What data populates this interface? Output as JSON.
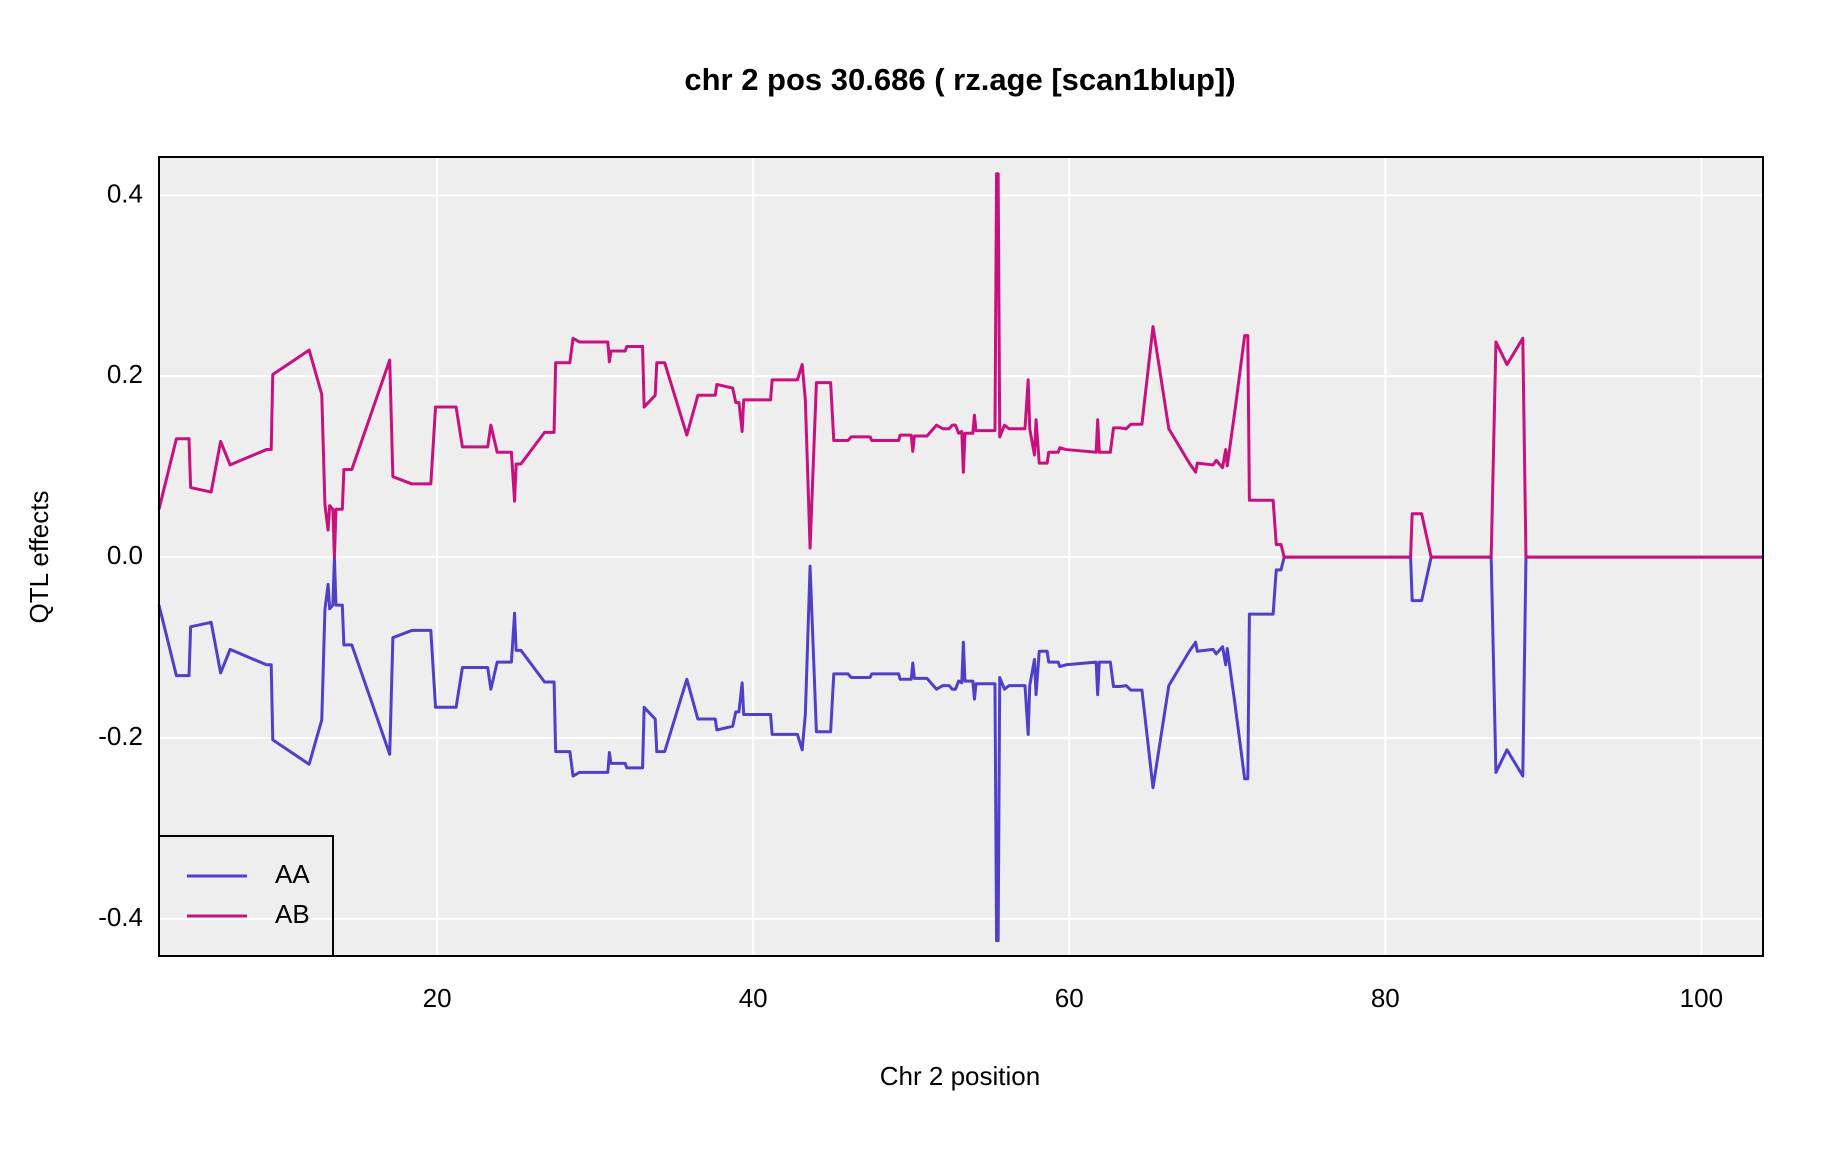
{
  "chart_data": {
    "type": "line",
    "title": "chr 2 pos 30.686 ( rz.age  [scan1blup])",
    "xlabel": "Chr 2 position",
    "ylabel": "QTL effects",
    "xlim": [
      2.4,
      103.9
    ],
    "ylim": [
      -0.441,
      0.4425
    ],
    "xticks": [
      20,
      40,
      60,
      80,
      100
    ],
    "yticks": [
      -0.4,
      -0.2,
      {
        "value": 0,
        "label": "0.0"
      },
      0.2,
      0.4
    ],
    "grid": true,
    "legend": "bottomleft",
    "x": [
      2.4,
      3.5,
      4.3,
      4.4,
      5.7,
      6.3,
      6.9,
      9.2,
      9.5,
      9.6,
      11.9,
      12.7,
      12.9,
      13.1,
      13.2,
      13.4,
      13.5,
      13.6,
      14.0,
      14.1,
      14.6,
      17.0,
      17.2,
      18.4,
      19.6,
      19.9,
      21.2,
      21.6,
      23.2,
      23.4,
      23.8,
      24.7,
      24.9,
      25.0,
      25.3,
      26.8,
      27.4,
      27.5,
      28.4,
      28.6,
      29.0,
      30.8,
      30.9,
      31.0,
      31.9,
      32.0,
      33.0,
      33.1,
      33.8,
      33.9,
      34.4,
      35.8,
      36.5,
      37.6,
      37.7,
      38.7,
      38.9,
      39.1,
      39.3,
      39.4,
      41.1,
      41.2,
      42.8,
      43.1,
      43.3,
      43.6,
      44.0,
      44.9,
      45.1,
      46.0,
      46.2,
      47.4,
      47.5,
      49.2,
      49.3,
      50.0,
      50.1,
      50.2,
      51.0,
      51.6,
      52.0,
      52.4,
      52.6,
      52.8,
      53.0,
      53.2,
      53.3,
      53.4,
      53.9,
      54.0,
      54.1,
      55.3,
      55.4,
      55.5,
      55.6,
      55.9,
      56.2,
      57.2,
      57.4,
      57.5,
      57.8,
      57.9,
      58.1,
      58.6,
      58.7,
      59.3,
      59.4,
      59.8,
      61.7,
      61.8,
      61.9,
      62.6,
      62.8,
      63.2,
      63.6,
      63.9,
      64.6,
      65.3,
      66.3,
      67.6,
      68.0,
      68.1,
      69.1,
      69.3,
      69.7,
      69.9,
      70.0,
      70.5,
      71.1,
      71.3,
      71.4,
      72.9,
      73.1,
      73.4,
      73.6,
      81.6,
      81.7,
      82.3,
      82.9,
      86.7,
      87.0,
      87.7,
      88.7,
      88.9,
      103.9
    ],
    "series": [
      {
        "name": "AA",
        "color": "#5040c8",
        "values": [
          -0.053,
          -0.131,
          -0.131,
          -0.077,
          -0.072,
          -0.128,
          -0.102,
          -0.119,
          -0.119,
          -0.202,
          -0.229,
          -0.18,
          -0.058,
          -0.03,
          -0.057,
          -0.053,
          0,
          -0.053,
          -0.053,
          -0.097,
          -0.097,
          -0.218,
          -0.089,
          -0.081,
          -0.081,
          -0.166,
          -0.166,
          -0.122,
          -0.122,
          -0.146,
          -0.116,
          -0.116,
          -0.062,
          -0.103,
          -0.103,
          -0.138,
          -0.138,
          -0.215,
          -0.215,
          -0.242,
          -0.238,
          -0.238,
          -0.216,
          -0.228,
          -0.228,
          -0.233,
          -0.233,
          -0.166,
          -0.179,
          -0.215,
          -0.215,
          -0.135,
          -0.179,
          -0.179,
          -0.191,
          -0.187,
          -0.171,
          -0.171,
          -0.139,
          -0.174,
          -0.174,
          -0.196,
          -0.196,
          -0.213,
          -0.174,
          -0.01,
          -0.193,
          -0.193,
          -0.129,
          -0.129,
          -0.133,
          -0.133,
          -0.129,
          -0.129,
          -0.135,
          -0.135,
          -0.117,
          -0.134,
          -0.134,
          -0.146,
          -0.142,
          -0.142,
          -0.146,
          -0.146,
          -0.137,
          -0.139,
          -0.094,
          -0.137,
          -0.137,
          -0.157,
          -0.14,
          -0.14,
          -0.424,
          -0.424,
          -0.133,
          -0.146,
          -0.142,
          -0.142,
          -0.196,
          -0.142,
          -0.113,
          -0.152,
          -0.104,
          -0.104,
          -0.116,
          -0.116,
          -0.121,
          -0.119,
          -0.116,
          -0.152,
          -0.116,
          -0.116,
          -0.143,
          -0.143,
          -0.142,
          -0.147,
          -0.147,
          -0.255,
          -0.142,
          -0.104,
          -0.094,
          -0.104,
          -0.102,
          -0.107,
          -0.099,
          -0.119,
          -0.101,
          -0.164,
          -0.245,
          -0.245,
          -0.063,
          -0.063,
          -0.014,
          -0.014,
          0,
          0,
          -0.048,
          -0.048,
          0,
          0,
          -0.238,
          -0.213,
          -0.242,
          0,
          0
        ]
      },
      {
        "name": "AB",
        "color": "#c8107f",
        "values": [
          0.053,
          0.131,
          0.131,
          0.077,
          0.072,
          0.128,
          0.102,
          0.119,
          0.119,
          0.202,
          0.229,
          0.18,
          0.058,
          0.03,
          0.057,
          0.053,
          0,
          0.053,
          0.053,
          0.097,
          0.097,
          0.218,
          0.089,
          0.081,
          0.081,
          0.166,
          0.166,
          0.122,
          0.122,
          0.146,
          0.116,
          0.116,
          0.062,
          0.103,
          0.103,
          0.138,
          0.138,
          0.215,
          0.215,
          0.242,
          0.238,
          0.238,
          0.216,
          0.228,
          0.228,
          0.233,
          0.233,
          0.166,
          0.179,
          0.215,
          0.215,
          0.135,
          0.179,
          0.179,
          0.191,
          0.187,
          0.171,
          0.171,
          0.139,
          0.174,
          0.174,
          0.196,
          0.196,
          0.213,
          0.174,
          0.01,
          0.193,
          0.193,
          0.129,
          0.129,
          0.133,
          0.133,
          0.129,
          0.129,
          0.135,
          0.135,
          0.117,
          0.134,
          0.134,
          0.146,
          0.142,
          0.142,
          0.146,
          0.146,
          0.137,
          0.139,
          0.094,
          0.137,
          0.137,
          0.157,
          0.14,
          0.14,
          0.424,
          0.424,
          0.133,
          0.146,
          0.142,
          0.142,
          0.196,
          0.142,
          0.113,
          0.152,
          0.104,
          0.104,
          0.116,
          0.116,
          0.121,
          0.119,
          0.116,
          0.152,
          0.116,
          0.116,
          0.143,
          0.143,
          0.142,
          0.147,
          0.147,
          0.255,
          0.142,
          0.104,
          0.094,
          0.104,
          0.102,
          0.107,
          0.099,
          0.119,
          0.101,
          0.164,
          0.245,
          0.245,
          0.063,
          0.063,
          0.014,
          0.014,
          0,
          0,
          0.048,
          0.048,
          0,
          0,
          0.238,
          0.213,
          0.242,
          0,
          0
        ]
      }
    ]
  }
}
